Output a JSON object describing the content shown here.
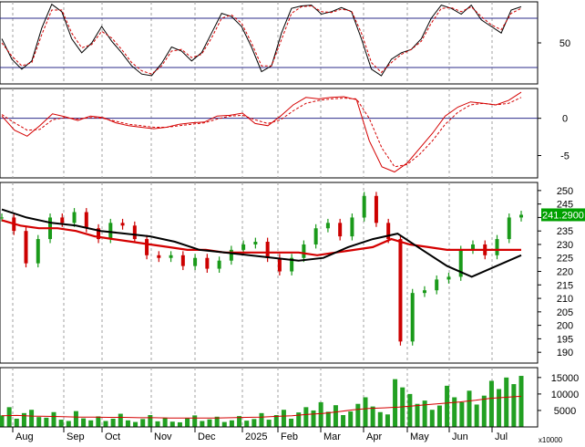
{
  "chart_data": {
    "type": "stock-multi-panel",
    "months": [
      "Aug",
      "Sep",
      "Oct",
      "Nov",
      "Dec",
      "2025",
      "Feb",
      "Mar",
      "Apr",
      "May",
      "Jun",
      "Jul"
    ],
    "stochastic": {
      "ticks": [
        {
          "value": 50,
          "label": "50"
        }
      ],
      "levels": [
        80,
        20
      ],
      "ylim": [
        0,
        100
      ],
      "k": [
        55,
        30,
        18,
        28,
        68,
        97,
        88,
        55,
        38,
        50,
        70,
        52,
        38,
        22,
        12,
        10,
        25,
        45,
        40,
        28,
        38,
        62,
        86,
        82,
        70,
        45,
        15,
        22,
        62,
        92,
        95,
        96,
        85,
        88,
        93,
        88,
        55,
        18,
        10,
        30,
        38,
        42,
        55,
        80,
        96,
        92,
        85,
        96,
        78,
        70,
        62,
        90,
        94
      ],
      "d": [
        50,
        34,
        22,
        26,
        60,
        90,
        90,
        62,
        44,
        48,
        64,
        56,
        42,
        26,
        16,
        12,
        22,
        40,
        42,
        32,
        36,
        56,
        80,
        84,
        74,
        50,
        22,
        22,
        54,
        86,
        94,
        95,
        88,
        87,
        91,
        89,
        62,
        26,
        14,
        26,
        36,
        42,
        52,
        74,
        92,
        93,
        88,
        94,
        82,
        72,
        66,
        86,
        92
      ]
    },
    "macd": {
      "ticks": [
        {
          "value": 0,
          "label": "0"
        },
        {
          "value": -5,
          "label": "-5"
        }
      ],
      "ylim": [
        -8,
        4
      ],
      "macd": [
        0.3,
        -1.6,
        -2.4,
        -1.0,
        0.6,
        0.2,
        -0.3,
        0.3,
        0.1,
        -0.6,
        -1.0,
        -1.2,
        -1.4,
        -1.2,
        -0.8,
        -0.6,
        -0.5,
        0.3,
        0.4,
        0.7,
        -0.7,
        -1.0,
        0.3,
        1.8,
        2.8,
        2.6,
        2.8,
        2.9,
        2.5,
        -3.0,
        -6.5,
        -7.2,
        -6.0,
        -4.0,
        -2.0,
        0.3,
        1.5,
        2.2,
        2.0,
        1.8,
        2.4,
        3.5
      ],
      "signal": [
        0.5,
        -0.6,
        -1.6,
        -1.5,
        -0.2,
        0.1,
        -0.1,
        0.1,
        0.0,
        -0.4,
        -0.8,
        -1.0,
        -1.2,
        -1.2,
        -1.0,
        -0.8,
        -0.6,
        -0.1,
        0.3,
        0.4,
        -0.2,
        -0.7,
        -0.2,
        1.0,
        2.0,
        2.4,
        2.6,
        2.7,
        2.6,
        0.0,
        -4.0,
        -6.5,
        -6.2,
        -4.8,
        -3.0,
        -0.8,
        0.8,
        1.8,
        2.0,
        1.8,
        2.0,
        2.8
      ]
    },
    "price": {
      "ticks": [
        250,
        245,
        240,
        235,
        230,
        225,
        220,
        215,
        210,
        205,
        200,
        195,
        190
      ],
      "ylim": [
        186,
        253
      ],
      "last_label": "241.2900",
      "close": [
        240,
        235,
        223,
        232,
        240,
        238,
        242,
        236,
        232,
        238,
        237,
        232,
        226,
        225,
        226,
        222,
        225,
        221,
        224,
        228,
        230,
        231,
        225,
        220,
        225,
        230,
        236,
        238,
        233,
        240,
        248,
        238,
        232,
        194,
        212,
        213,
        217,
        218,
        228,
        230,
        226,
        232,
        240,
        241
      ],
      "ma_long": [
        239,
        237,
        236,
        236,
        235,
        233,
        232,
        231,
        230,
        229,
        228,
        228,
        227,
        227,
        227,
        227,
        227,
        226,
        227,
        228,
        229,
        232,
        230,
        229,
        228,
        228,
        228,
        228,
        228
      ],
      "ma_short": [
        243,
        240,
        238,
        237,
        235,
        234,
        233,
        231,
        228,
        227,
        226,
        225,
        224,
        225,
        229,
        232,
        234,
        228,
        222,
        218,
        222,
        226
      ]
    },
    "volume": {
      "ticks": [
        {
          "value": 15000,
          "label": "15000"
        },
        {
          "value": 10000,
          "label": "10000"
        },
        {
          "value": 5000,
          "label": "5000"
        }
      ],
      "unit_label": "x10000",
      "ylim": [
        0,
        18000
      ],
      "bars": [
        3500,
        6000,
        2500,
        4200,
        5200,
        3000,
        2800,
        4500,
        2200,
        1800,
        4800,
        2600,
        2000,
        3200,
        1800,
        2500,
        4000,
        2000,
        1500,
        2400,
        3600,
        1700,
        2800,
        1600,
        1400,
        2600,
        3500,
        1800,
        2300,
        3100,
        1500,
        2000,
        3300,
        1900,
        2400,
        4200,
        2200,
        3600,
        5200,
        2500,
        4400,
        6000,
        5000,
        7500,
        4600,
        6600,
        3600,
        4700,
        7000,
        9000,
        6200,
        4500,
        3800,
        14500,
        12000,
        10000,
        7000,
        8000,
        5200,
        6500,
        12500,
        9000,
        7500,
        11000,
        6800,
        9500,
        14000,
        11500,
        15000,
        13000,
        15500
      ],
      "ma": [
        3400,
        3500,
        3300,
        3200,
        3100,
        3000,
        3000,
        2900,
        2900,
        2800,
        2800,
        2700,
        2700,
        2700,
        2700,
        2800,
        2900,
        3000,
        3200,
        3400,
        3800,
        4100,
        4600,
        5200,
        5600,
        5800,
        6000,
        6400,
        6800,
        7200,
        7600,
        8100,
        8700,
        9000,
        9300
      ]
    }
  }
}
